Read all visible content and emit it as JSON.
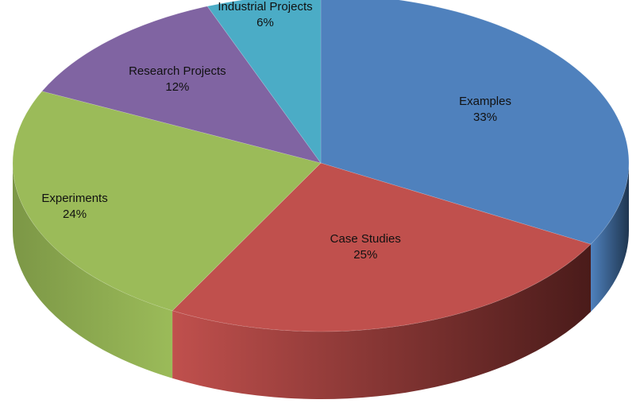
{
  "chart_data": {
    "type": "pie",
    "style": "3d-tilted",
    "legend": "none",
    "slices": [
      {
        "label": "Examples",
        "value": 33,
        "value_label": "33%",
        "color": "#4F81BD",
        "side_dark": "#1F3650"
      },
      {
        "label": "Case Studies",
        "value": 25,
        "value_label": "25%",
        "color": "#C0504D",
        "side_dark": "#4A1B1A"
      },
      {
        "label": "Experiments",
        "value": 24,
        "value_label": "24%",
        "color": "#9BBB59",
        "side_dark": "#7C9746"
      },
      {
        "label": "Research Projects",
        "value": 12,
        "value_label": "12%",
        "color": "#8064A2",
        "side_dark": "#4F3C66"
      },
      {
        "label": "Industrial Projects",
        "value": 6,
        "value_label": "6%",
        "color": "#4BACC6",
        "side_dark": "#2E7487"
      }
    ]
  }
}
